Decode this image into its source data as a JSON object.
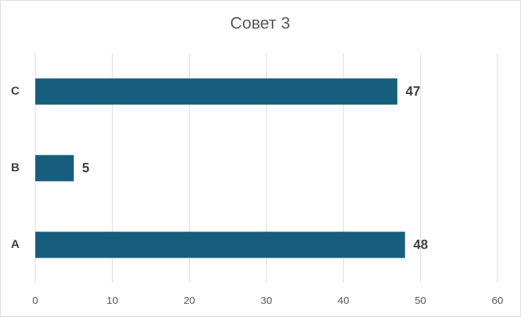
{
  "chart_data": {
    "type": "hbar",
    "title": "Совет 3",
    "categories": [
      "A",
      "B",
      "C"
    ],
    "values": [
      48,
      5,
      47
    ],
    "color": "#175e7e",
    "xlim": [
      0,
      60
    ],
    "xticks": [
      0,
      10,
      20,
      30,
      40,
      50,
      60
    ],
    "grid": true
  }
}
